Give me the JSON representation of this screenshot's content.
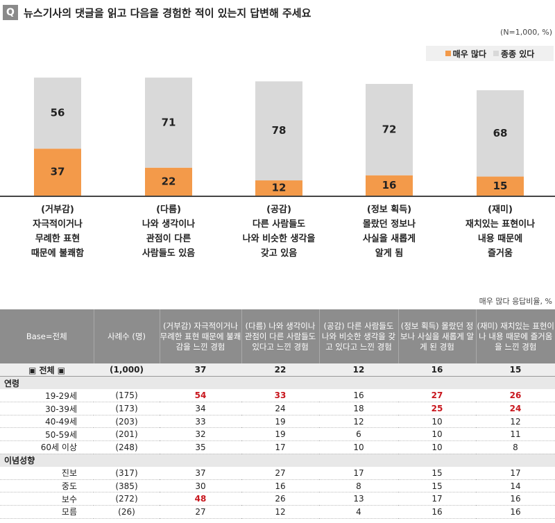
{
  "header": {
    "badge": "Q",
    "question": "뉴스기사의 댓글을 읽고 다음을 경험한 적이 있는지 답변해 주세요",
    "sample_note": "(N=1,000, %)",
    "table_note": "매우 많다 응답비율, %"
  },
  "legend": [
    {
      "label": "매우 많다",
      "color": "#f39a4a"
    },
    {
      "label": "종종 있다",
      "color": "#d9d9d9"
    }
  ],
  "colors": {
    "very_many": "#f39a4a",
    "sometimes": "#d9d9d9",
    "highlight": "#c8161d"
  },
  "chart_data": {
    "type": "bar",
    "stacked": true,
    "categories": [
      [
        "(거부감)",
        "자극적이거나",
        "무례한 표현",
        "때문에 불쾌함"
      ],
      [
        "(다름)",
        "나와 생각이나",
        "관점이 다른",
        "사람들도 있음"
      ],
      [
        "(공감)",
        "다른 사람들도",
        "나와 비슷한 생각을",
        "갖고 있음"
      ],
      [
        "(정보 획득)",
        "몰랐던 정보나",
        "사실을 새롭게",
        "알게 됨"
      ],
      [
        "(재미)",
        "재치있는 표현이나",
        "내용 때문에",
        "즐거움"
      ]
    ],
    "series": [
      {
        "name": "매우 많다",
        "values": [
          37,
          22,
          12,
          16,
          15
        ]
      },
      {
        "name": "종종 있다",
        "values": [
          56,
          71,
          78,
          72,
          68
        ]
      }
    ],
    "ylim": [
      0,
      100
    ]
  },
  "table": {
    "headers": [
      "Base=전체",
      "사례수 (명)",
      "(거부감) 자극적이거나 무례한 표현 때문에 불쾌감을 느낀 경험",
      "(다름) 나와 생각이나 관점이 다른 사람들도 있다고 느낀 경험",
      "(공감) 다른 사람들도 나와 비슷한 생각을 갖고 있다고 느낀 경험",
      "(정보 획득) 몰랐던 정보나 사실을 새롭게 알게 된 경험",
      "(재미) 재치있는 표현이나 내용 때문에 즐거움을 느낀 경험"
    ],
    "total": {
      "label": "▣ 전체 ▣",
      "n": "(1,000)",
      "values": [
        "37",
        "22",
        "12",
        "16",
        "15"
      ]
    },
    "groups": [
      {
        "name": "연령",
        "rows": [
          {
            "label": "19-29세",
            "n": "(175)",
            "values": [
              "54",
              "33",
              "16",
              "27",
              "26"
            ],
            "highlight": [
              0,
              1,
              3,
              4
            ]
          },
          {
            "label": "30-39세",
            "n": "(173)",
            "values": [
              "34",
              "24",
              "18",
              "25",
              "24"
            ],
            "highlight": [
              3,
              4
            ]
          },
          {
            "label": "40-49세",
            "n": "(203)",
            "values": [
              "33",
              "19",
              "12",
              "10",
              "12"
            ],
            "highlight": []
          },
          {
            "label": "50-59세",
            "n": "(201)",
            "values": [
              "32",
              "19",
              "6",
              "10",
              "11"
            ],
            "highlight": []
          },
          {
            "label": "60세 이상",
            "n": "(248)",
            "values": [
              "35",
              "17",
              "10",
              "10",
              "8"
            ],
            "highlight": []
          }
        ]
      },
      {
        "name": "이념성향",
        "rows": [
          {
            "label": "진보",
            "n": "(317)",
            "values": [
              "37",
              "27",
              "17",
              "15",
              "17"
            ],
            "highlight": []
          },
          {
            "label": "중도",
            "n": "(385)",
            "values": [
              "30",
              "16",
              "8",
              "15",
              "14"
            ],
            "highlight": []
          },
          {
            "label": "보수",
            "n": "(272)",
            "values": [
              "48",
              "26",
              "13",
              "17",
              "16"
            ],
            "highlight": [
              0
            ]
          },
          {
            "label": "모름",
            "n": "(26)",
            "values": [
              "27",
              "12",
              "4",
              "16",
              "16"
            ],
            "highlight": []
          }
        ]
      }
    ]
  }
}
